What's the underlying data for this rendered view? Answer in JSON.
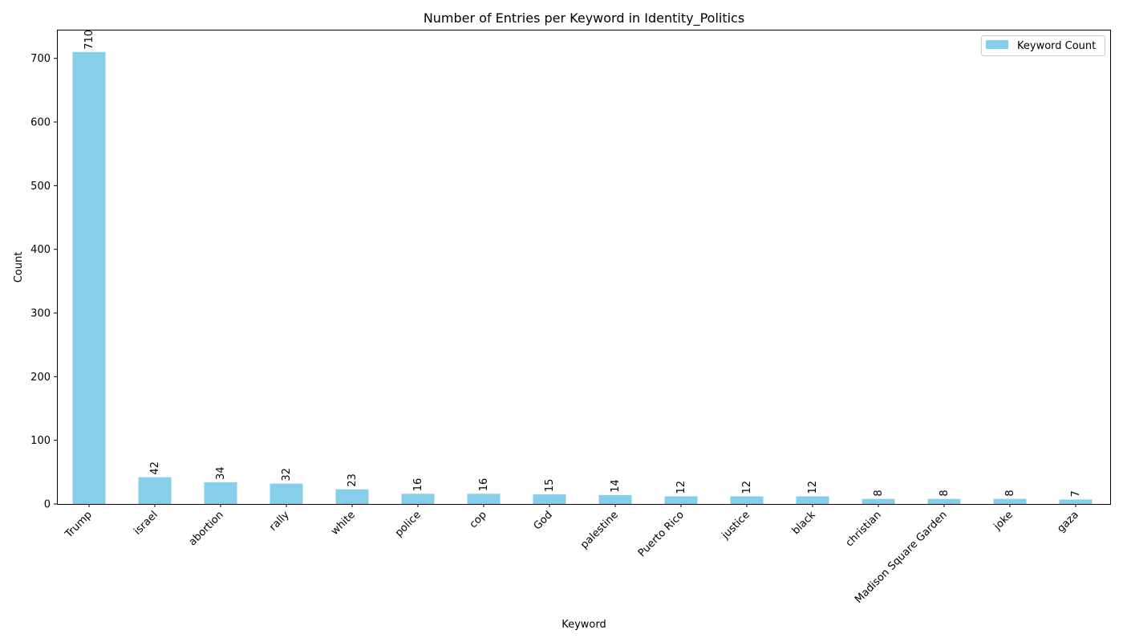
{
  "chart_data": {
    "type": "bar",
    "title": "Number of Entries per Keyword in Identity_Politics",
    "xlabel": "Keyword",
    "ylabel": "Count",
    "categories": [
      "Trump",
      "israel",
      "abortion",
      "rally",
      "white",
      "police",
      "cop",
      "God",
      "palestine",
      "Puerto Rico",
      "justice",
      "black",
      "christian",
      "Madison Square Garden",
      "joke",
      "gaza"
    ],
    "series": [
      {
        "name": "Keyword Count",
        "values": [
          710,
          42,
          34,
          32,
          23,
          16,
          16,
          15,
          14,
          12,
          12,
          12,
          8,
          8,
          8,
          7
        ],
        "color": "#87ceeb"
      }
    ],
    "ylim": [
      0,
      745
    ],
    "yticks": [
      0,
      100,
      200,
      300,
      400,
      500,
      600,
      700
    ],
    "grid": false,
    "legend_position": "top-right",
    "data_labels": true
  }
}
